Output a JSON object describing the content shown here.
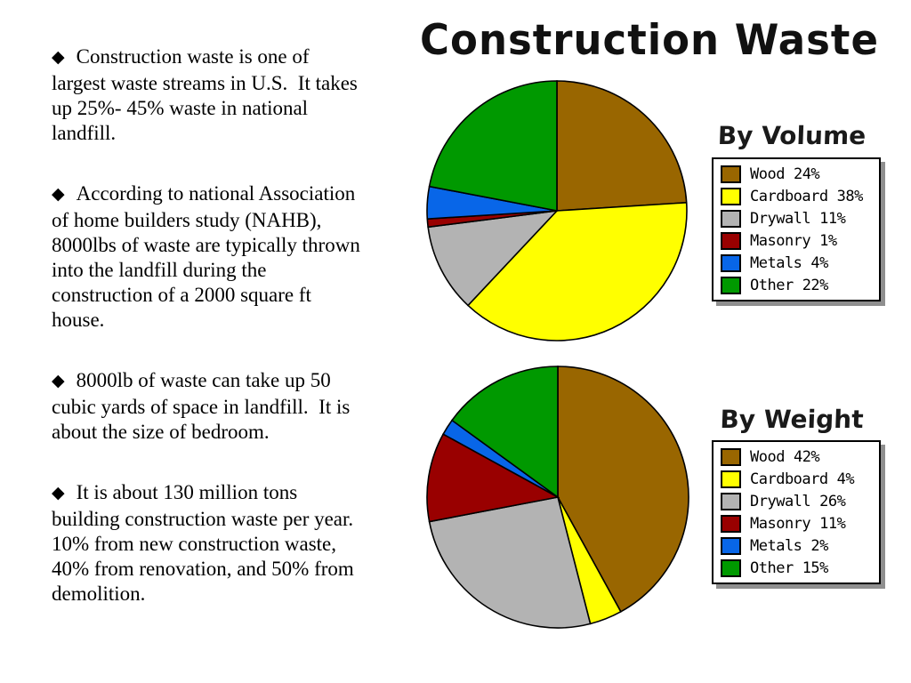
{
  "colors": {
    "background": "#FFFFFF",
    "text": "#000000",
    "legend_shadow": "#8F8F8F"
  },
  "icons": {
    "diamond_bullet": "◆"
  },
  "slide": {
    "title": "Construction Waste",
    "bullets": [
      "Construction waste is one of\nlargest waste streams in U.S.  It takes\nup 25%- 45% waste in national\nlandfill.",
      "According to national Association\nof home builders study (NAHB),\n8000lbs of waste are typically thrown\ninto the landfill during the\nconstruction of a 2000 square ft\nhouse.",
      "8000lb of waste can take up 50\ncubic yards of space in landfill.  It is\nabout the size of bedroom.",
      "It is about 130 million tons\nbuilding construction waste per year.\n10% from new construction waste,\n40% from renovation, and 50% from\ndemolition."
    ]
  },
  "chart_data": [
    {
      "type": "pie",
      "title": "By Volume",
      "categories": [
        "Wood",
        "Cardboard",
        "Drywall",
        "Masonry",
        "Metals",
        "Other"
      ],
      "values": [
        24,
        38,
        11,
        1,
        4,
        22
      ],
      "colors": [
        "#996600",
        "#FFFF00",
        "#B3B3B3",
        "#990000",
        "#0866E8",
        "#009900"
      ],
      "legend_position": "right",
      "start_angle_deg": 0,
      "direction": "clockwise"
    },
    {
      "type": "pie",
      "title": "By Weight",
      "categories": [
        "Wood",
        "Cardboard",
        "Drywall",
        "Masonry",
        "Metals",
        "Other"
      ],
      "values": [
        42,
        4,
        26,
        11,
        2,
        15
      ],
      "colors": [
        "#996600",
        "#FFFF00",
        "#B3B3B3",
        "#990000",
        "#0866E8",
        "#009900"
      ],
      "legend_position": "right",
      "start_angle_deg": 0,
      "direction": "clockwise"
    }
  ]
}
